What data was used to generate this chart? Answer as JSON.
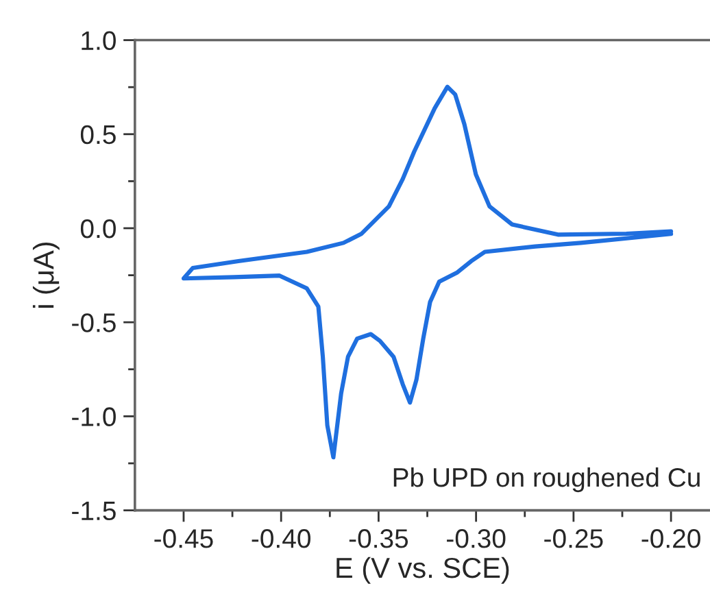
{
  "chart_data": {
    "type": "line",
    "xlabel": "E (V vs. SCE)",
    "ylabel": "i (μA)",
    "annotations": [
      "Pb UPD on roughened Cu"
    ],
    "series": [
      {
        "color": "#1f6fdf",
        "x": [
          -0.2,
          -0.2463,
          -0.2697,
          -0.2955,
          -0.3025,
          -0.3096,
          -0.3189,
          -0.3236,
          -0.3271,
          -0.3306,
          -0.3339,
          -0.3376,
          -0.3423,
          -0.3493,
          -0.354,
          -0.361,
          -0.3657,
          -0.3692,
          -0.3732,
          -0.3763,
          -0.3786,
          -0.3809,
          -0.3868,
          -0.4008,
          -0.4242,
          -0.45,
          -0.4453,
          -0.4219,
          -0.3868,
          -0.368,
          -0.3587,
          -0.3447,
          -0.3376,
          -0.3317,
          -0.3212,
          -0.3147,
          -0.3107,
          -0.306,
          -0.3001,
          -0.2931,
          -0.2815,
          -0.258,
          -0.2229,
          -0.2
        ],
        "values": [
          -0.03,
          -0.078,
          -0.097,
          -0.126,
          -0.175,
          -0.235,
          -0.284,
          -0.393,
          -0.587,
          -0.806,
          -0.927,
          -0.83,
          -0.684,
          -0.599,
          -0.563,
          -0.587,
          -0.684,
          -0.878,
          -1.218,
          -1.048,
          -0.684,
          -0.417,
          -0.32,
          -0.252,
          -0.26,
          -0.267,
          -0.211,
          -0.175,
          -0.126,
          -0.078,
          -0.029,
          0.116,
          0.262,
          0.408,
          0.638,
          0.752,
          0.711,
          0.553,
          0.286,
          0.116,
          0.02,
          -0.034,
          -0.029,
          -0.017
        ]
      }
    ],
    "xlim": [
      -0.475,
      -0.18
    ],
    "ylim": [
      -1.5,
      1.0
    ],
    "xticks": [
      {
        "value": -0.45,
        "label": "-0.45"
      },
      {
        "value": -0.425,
        "label": null
      },
      {
        "value": -0.4,
        "label": "-0.40"
      },
      {
        "value": -0.375,
        "label": null
      },
      {
        "value": -0.35,
        "label": "-0.35"
      },
      {
        "value": -0.325,
        "label": null
      },
      {
        "value": -0.3,
        "label": "-0.30"
      },
      {
        "value": -0.275,
        "label": null
      },
      {
        "value": -0.25,
        "label": "-0.25"
      },
      {
        "value": -0.225,
        "label": null
      },
      {
        "value": -0.2,
        "label": "-0.20"
      }
    ],
    "yticks": [
      {
        "value": -1.5,
        "label": "-1.5"
      },
      {
        "value": -1.25,
        "label": null
      },
      {
        "value": -1.0,
        "label": "-1.0"
      },
      {
        "value": -0.75,
        "label": null
      },
      {
        "value": -0.5,
        "label": "-0.5"
      },
      {
        "value": -0.25,
        "label": null
      },
      {
        "value": 0.0,
        "label": "0.0"
      },
      {
        "value": 0.25,
        "label": null
      },
      {
        "value": 0.5,
        "label": "0.5"
      },
      {
        "value": 0.75,
        "label": null
      },
      {
        "value": 1.0,
        "label": "1.0"
      }
    ],
    "grid": false,
    "marker": "none",
    "line_style": "solid"
  }
}
